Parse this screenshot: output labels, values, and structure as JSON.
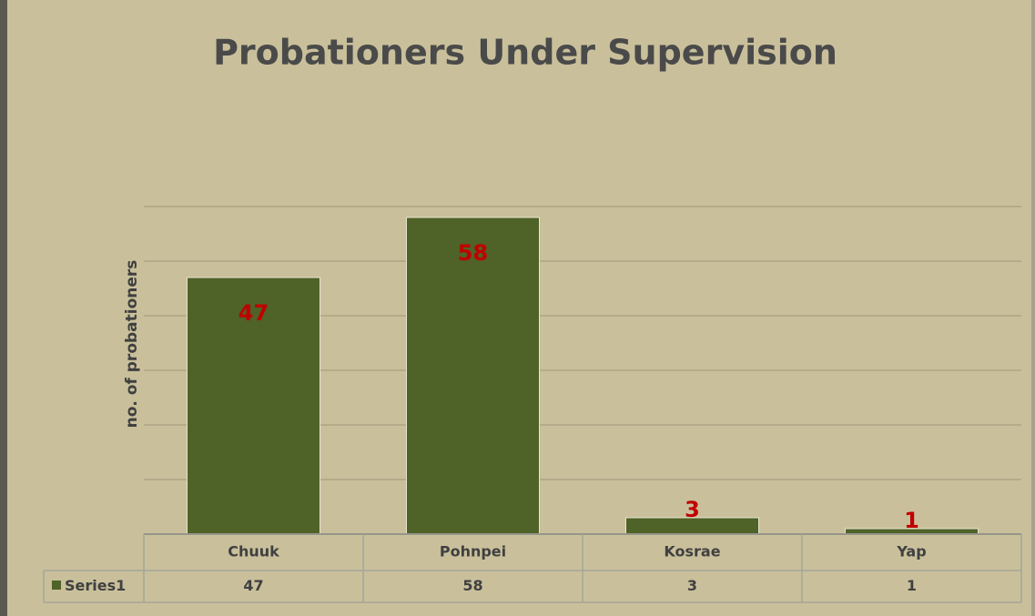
{
  "chart_data": {
    "type": "bar",
    "title": "Probationers Under Supervision",
    "y_label": "no. of probationers",
    "categories": [
      "Chuuk",
      "Pohnpei",
      "Kosrae",
      "Yap"
    ],
    "series": [
      {
        "name": "Series1",
        "color": "#4f6228",
        "values": [
          47,
          58,
          3,
          1
        ]
      }
    ],
    "ylim": [
      0,
      60
    ],
    "yticks": [
      0,
      10,
      20,
      30,
      40,
      50,
      60
    ],
    "grid": true,
    "label_color": "#c00000",
    "data_table": true
  }
}
